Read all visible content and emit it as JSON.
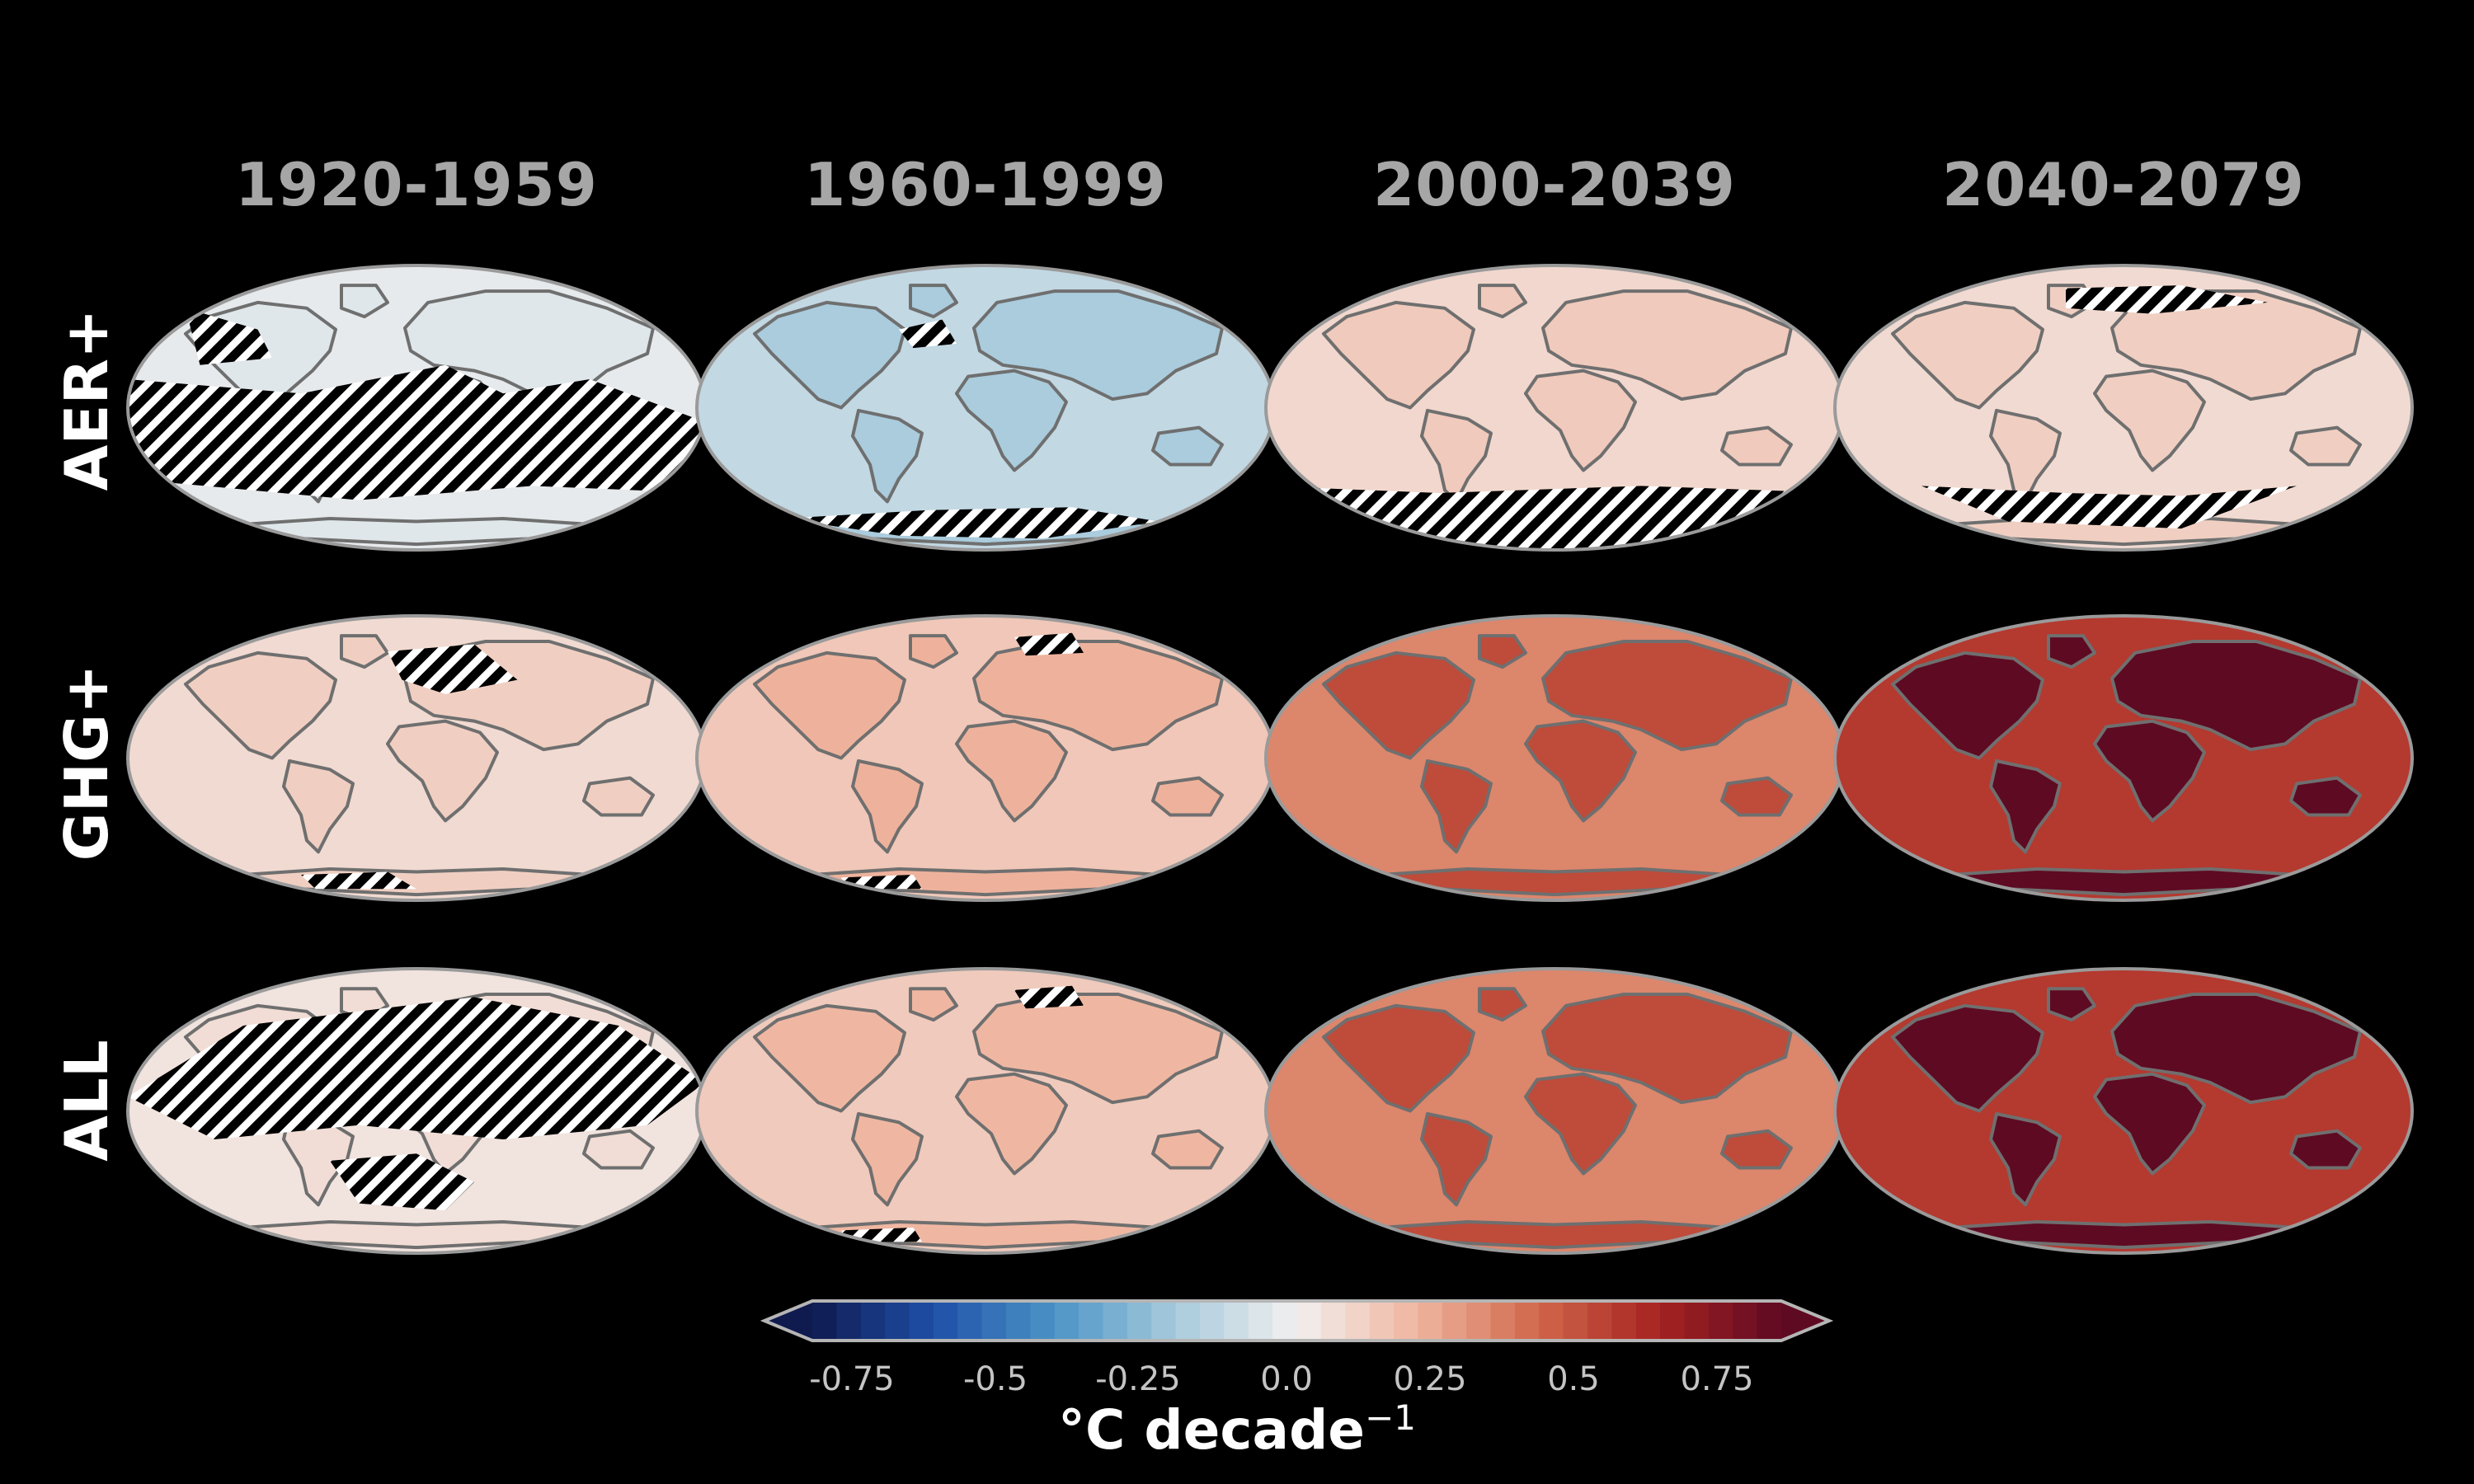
{
  "figure": {
    "columns": [
      "1920-1959",
      "1960-1999",
      "2000-2039",
      "2040-2079"
    ],
    "rows": [
      "AER+",
      "GHG+",
      "ALL"
    ]
  },
  "maps": [
    {
      "row": "AER+",
      "period": "1920-1959",
      "mean_trend": -0.03,
      "hatched": "most of the globe"
    },
    {
      "row": "AER+",
      "period": "1960-1999",
      "mean_trend": -0.12,
      "hatched": "Southern Ocean / Antarctica"
    },
    {
      "row": "AER+",
      "period": "2000-2039",
      "mean_trend": 0.08,
      "hatched": "Southern Ocean"
    },
    {
      "row": "AER+",
      "period": "2040-2079",
      "mean_trend": 0.07,
      "hatched": "Southern Ocean, Arctic"
    },
    {
      "row": "GHG+",
      "period": "1920-1959",
      "mean_trend": 0.07,
      "hatched": "North Atlantic, Eurasia patches"
    },
    {
      "row": "GHG+",
      "period": "1960-1999",
      "mean_trend": 0.13,
      "hatched": "small patches"
    },
    {
      "row": "GHG+",
      "period": "2000-2039",
      "mean_trend": 0.3,
      "hatched": "none"
    },
    {
      "row": "GHG+",
      "period": "2040-2079",
      "mean_trend": 0.5,
      "hatched": "none"
    },
    {
      "row": "ALL",
      "period": "1920-1959",
      "mean_trend": 0.04,
      "hatched": "most of Northern Hemisphere"
    },
    {
      "row": "ALL",
      "period": "1960-1999",
      "mean_trend": 0.12,
      "hatched": "small patches"
    },
    {
      "row": "ALL",
      "period": "2000-2039",
      "mean_trend": 0.3,
      "hatched": "none"
    },
    {
      "row": "ALL",
      "period": "2040-2079",
      "mean_trend": 0.5,
      "hatched": "none"
    }
  ],
  "colorbar": {
    "ticks": [
      "-0.75",
      "-0.5",
      "-0.25",
      "0.0",
      "0.25",
      "0.5",
      "0.75"
    ],
    "min": -0.75,
    "max": 0.75,
    "label": "°C decade",
    "label_exponent": "−1",
    "colors": [
      "#0f1a4f",
      "#1f4fa8",
      "#4b94c6",
      "#a7cadc",
      "#f2f0ef",
      "#efb59f",
      "#d0664a",
      "#a62221",
      "#5e0a22"
    ]
  }
}
